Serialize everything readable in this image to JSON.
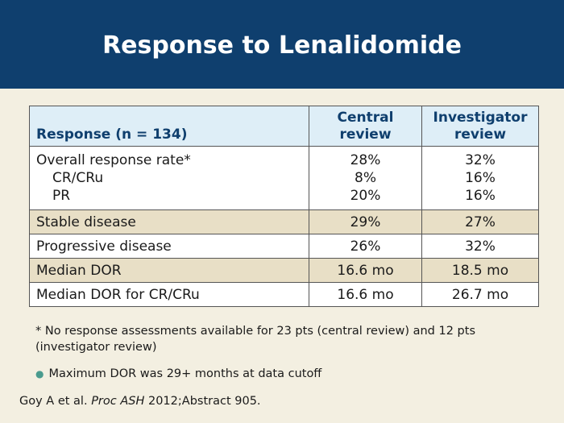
{
  "title": "Response to Lenalidomide",
  "table": {
    "header": {
      "response": "Response (n = 134)",
      "central": "Central\nreview",
      "investigator": "Investigator\nreview"
    },
    "overall": {
      "labels": [
        "Overall response rate*",
        "CR/CRu",
        "PR"
      ],
      "central": [
        "28%",
        "8%",
        "20%"
      ],
      "investigator": [
        "32%",
        "16%",
        "16%"
      ]
    },
    "rows": [
      {
        "label": "Stable disease",
        "central": "29%",
        "investigator": "27%"
      },
      {
        "label": "Progressive disease",
        "central": "26%",
        "investigator": "32%"
      },
      {
        "label": "Median DOR",
        "central": "16.6 mo",
        "investigator": "18.5 mo"
      },
      {
        "label": "Median DOR for CR/CRu",
        "central": "16.6 mo",
        "investigator": "26.7 mo"
      }
    ]
  },
  "footnote": "* No response assessments available for 23 pts (central review) and 12 pts (investigator review)",
  "bullet": "Maximum DOR was 29+ months at data cutoff",
  "citation": {
    "authors": "Goy A et al.",
    "journal": "Proc ASH",
    "rest": "2012;Abstract 905."
  }
}
